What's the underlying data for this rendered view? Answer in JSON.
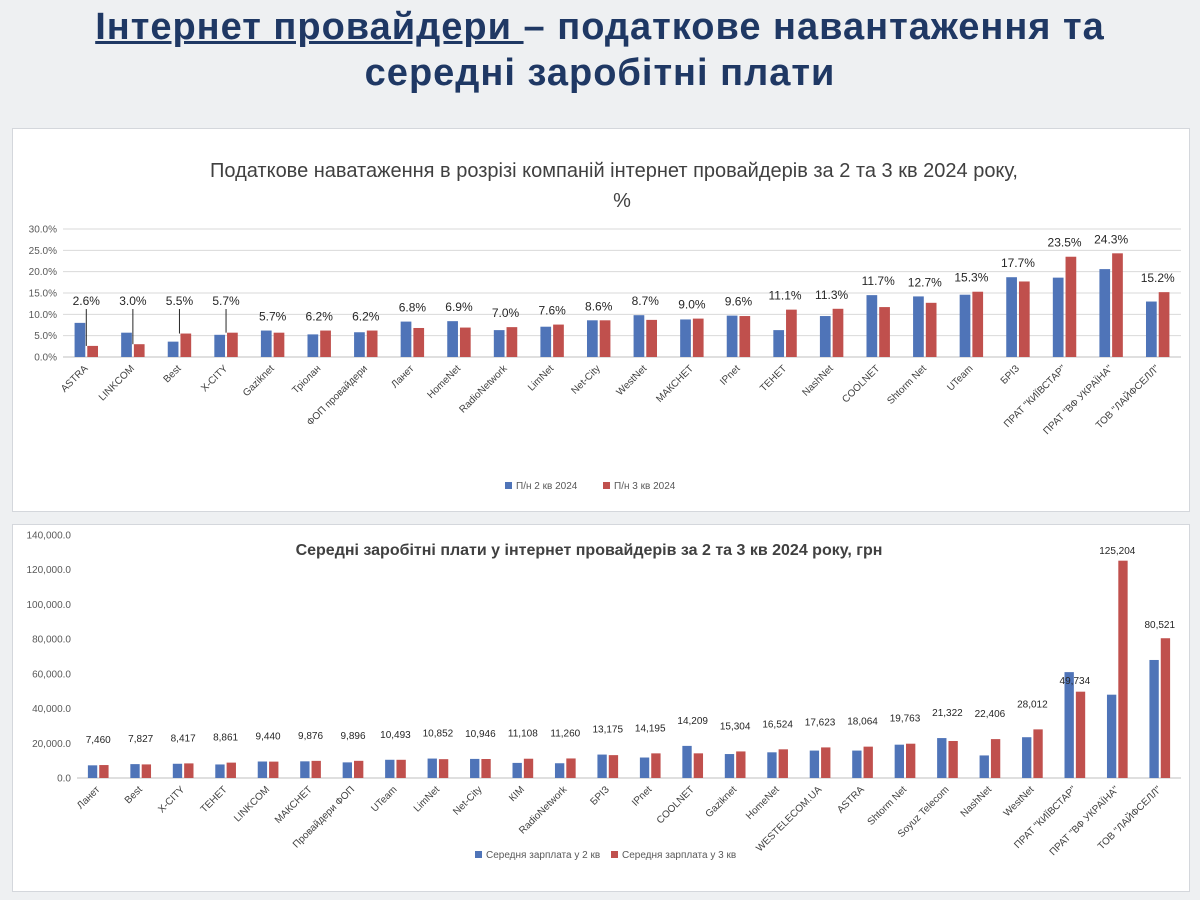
{
  "slide": {
    "title_strong": "Інтернет провайдери ",
    "title_rest": "– податкове навантаження та",
    "title_line2": "середні заробітні плати"
  },
  "colors": {
    "series1": "#4f74b8",
    "series2": "#c0504d"
  },
  "chart_data": [
    {
      "type": "bar",
      "title_line1": "Податкове наватаження в розрізі компаній інтернет провайдерів за 2 та 3 кв 2024 року,",
      "title_line2": "%",
      "ylim": [
        0,
        30
      ],
      "yticks": [
        "0.0%",
        "5.0%",
        "10.0%",
        "15.0%",
        "20.0%",
        "25.0%",
        "30.0%"
      ],
      "grid": true,
      "legend_position": "bottom",
      "categories": [
        "ASTRA",
        "LINKCOM",
        "Best",
        "X-CITY",
        "Gaziknet",
        "Тріолан",
        "ФОП провайдери",
        "Ланет",
        "HomeNet",
        "RadioNetwork",
        "LimNet",
        "Net-City",
        "WestNet",
        "МАКСНЕТ",
        "IPnet",
        "ТЕНЕТ",
        "NashNet",
        "COOLNET",
        "Shtorm Net",
        "UTeam",
        "БРІЗ",
        "ПРАТ \"КИЇВСТАР\"",
        "ПРАТ \"ВФ УКРАЇНА\"",
        "ТОВ \"ЛАЙФСЕЛЛ\""
      ],
      "series": [
        {
          "name": "П/н 2 кв 2024",
          "values": [
            8.0,
            5.7,
            3.6,
            5.2,
            6.2,
            5.3,
            5.8,
            8.3,
            8.4,
            6.3,
            7.1,
            8.6,
            9.8,
            8.8,
            9.7,
            6.3,
            9.6,
            14.5,
            14.2,
            14.6,
            18.7,
            18.6,
            20.6,
            13.0
          ]
        },
        {
          "name": "П/н 3 кв 2024",
          "values": [
            2.6,
            3.0,
            5.5,
            5.7,
            5.7,
            6.2,
            6.2,
            6.8,
            6.9,
            7.0,
            7.6,
            8.6,
            8.7,
            9.0,
            9.6,
            11.1,
            11.3,
            11.7,
            12.7,
            15.3,
            17.7,
            23.5,
            24.3,
            15.2
          ]
        }
      ],
      "data_labels": [
        "2.6%",
        "3.0%",
        "5.5%",
        "5.7%",
        "5.7%",
        "6.2%",
        "6.2%",
        "6.8%",
        "6.9%",
        "7.0%",
        "7.6%",
        "8.6%",
        "8.7%",
        "9.0%",
        "9.6%",
        "11.1%",
        "11.3%",
        "11.7%",
        "12.7%",
        "15.3%",
        "17.7%",
        "23.5%",
        "24.3%",
        "15.2%"
      ]
    },
    {
      "type": "bar",
      "title": "Середні заробітні плати у інтернет провайдерів за 2 та 3 кв 2024 року, грн",
      "ylim": [
        0,
        140000
      ],
      "yticks": [
        "0.0",
        "20,000.0",
        "40,000.0",
        "60,000.0",
        "80,000.0",
        "100,000.0",
        "120,000.0",
        "140,000.0"
      ],
      "grid": false,
      "legend_position": "bottom",
      "categories": [
        "Ланет",
        "Best",
        "X-CITY",
        "ТЕНЕТ",
        "LINKCOM",
        "МАКСНЕТ",
        "Провайдери ФОП",
        "UTeam",
        "LimNet",
        "Net-City",
        "КІМ",
        "RadioNetwork",
        "БРІЗ",
        "IPnet",
        "COOLNET",
        "Gaziknet",
        "HomeNet",
        "WESTELECOM.UA",
        "ASTRA",
        "Shtorm Net",
        "Soyuz Telecom",
        "NashNet",
        "WestNet",
        "ПРАТ \"КИЇВСТАР\"",
        "ПРАТ \"ВФ УКРАЇНА\"",
        "ТОВ \"ЛАЙФСЕЛЛ\""
      ],
      "series": [
        {
          "name": "Середня зарплата у 2 кв",
          "values": [
            7300,
            8000,
            8200,
            7800,
            9500,
            9600,
            9000,
            10500,
            11200,
            11000,
            8700,
            8500,
            13500,
            11800,
            18500,
            13800,
            14800,
            15800,
            15800,
            19200,
            23000,
            13000,
            23500,
            61000,
            48000,
            68000
          ]
        },
        {
          "name": "Середня зарплата у 3 кв",
          "values": [
            7460,
            7827,
            8417,
            8861,
            9440,
            9876,
            9896,
            10493,
            10852,
            10946,
            11108,
            11260,
            13175,
            14195,
            14209,
            15304,
            16524,
            17623,
            18064,
            19763,
            21322,
            22406,
            28012,
            49734,
            125204,
            80521
          ]
        }
      ],
      "data_labels": [
        "7,460",
        "7,827",
        "8,417",
        "8,861",
        "9,440",
        "9,876",
        "9,896",
        "10,493",
        "10,852",
        "10,946",
        "11,108",
        "11,260",
        "13,175",
        "14,195",
        "14,209",
        "15,304",
        "16,524",
        "17,623",
        "18,064",
        "19,763",
        "21,322",
        "22,406",
        "28,012",
        "49,734",
        "125,204",
        "80,521"
      ]
    }
  ]
}
